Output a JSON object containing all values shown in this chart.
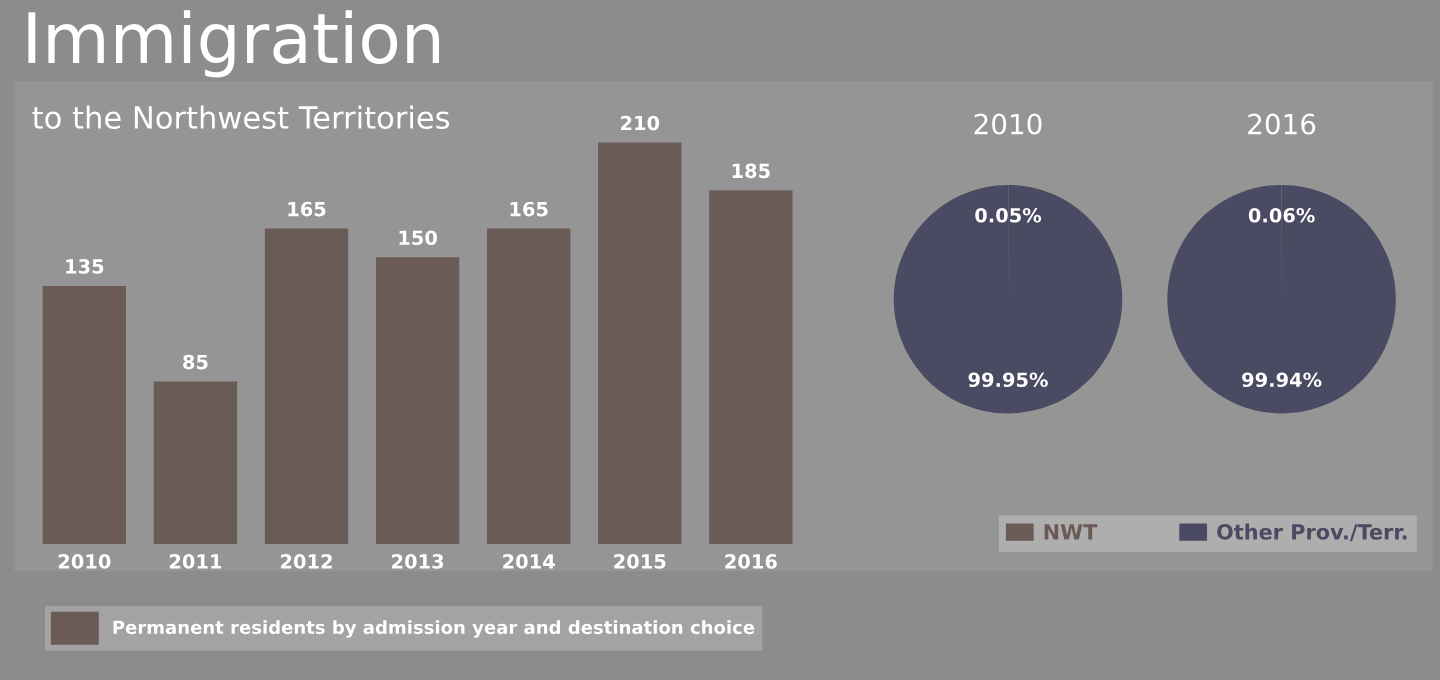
{
  "chart_data": [
    {
      "type": "bar",
      "title": "Immigration",
      "subtitle": "to the Northwest Territories",
      "categories": [
        "2010",
        "2011",
        "2012",
        "2013",
        "2014",
        "2015",
        "2016"
      ],
      "series": [
        {
          "name": "Permanent residents by admission year and destination choice",
          "color": "#6b5b56",
          "values": [
            135,
            85,
            165,
            150,
            165,
            210,
            185
          ]
        }
      ],
      "data_labels": true,
      "tick_labels": "x",
      "legend": "bottom left",
      "grid": false
    },
    {
      "type": "pie",
      "title": "2010",
      "categories": [
        "NWT",
        "Other Prov./Terr."
      ],
      "values": [
        0.05,
        99.95
      ],
      "colors": [
        "#6b5b56",
        "#4a4a62"
      ],
      "value_labels": [
        "0.05%",
        "99.95%"
      ],
      "legend": "bottom"
    },
    {
      "type": "pie",
      "title": "2016",
      "categories": [
        null,
        null
      ],
      "values": [
        0.06,
        99.94
      ],
      "colors": [
        "#6b5b56",
        "#4a4a62"
      ],
      "value_labels": [
        "0.06%",
        "99.94%"
      ]
    }
  ]
}
